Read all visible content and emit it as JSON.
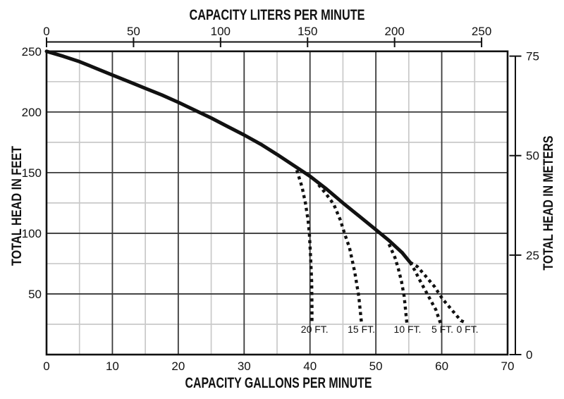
{
  "colors": {
    "background": "#ffffff",
    "ink": "#111111",
    "minor_grid": "#c9c9c9",
    "major_grid": "#3a3a3a"
  },
  "figure": {
    "top_axis": {
      "title": "CAPACITY LITERS PER MINUTE",
      "ticks": [
        0,
        50,
        100,
        150,
        200,
        250
      ],
      "liters_per_gallon": 3.785
    },
    "bottom_axis": {
      "title": "CAPACITY GALLONS PER MINUTE",
      "ticks": [
        0,
        10,
        20,
        30,
        40,
        50,
        60,
        70
      ],
      "max": 70
    },
    "left_axis": {
      "title": "TOTAL HEAD IN FEET",
      "ticks": [
        50,
        100,
        150,
        200,
        250
      ],
      "max": 250
    },
    "right_axis": {
      "title": "TOTAL HEAD IN METERS",
      "ticks": [
        0,
        25,
        50,
        75
      ],
      "feet_per_meter": 3.2808
    }
  },
  "chart_data": {
    "type": "line",
    "xlabel": "CAPACITY GALLONS PER MINUTE",
    "ylabel": "TOTAL HEAD IN FEET",
    "x2label": "CAPACITY LITERS PER MINUTE",
    "y2label": "TOTAL HEAD IN METERS",
    "xlim": [
      0,
      70
    ],
    "ylim": [
      0,
      250
    ],
    "x2lim_liters": [
      0,
      250
    ],
    "y2lim_meters": [
      0,
      75
    ],
    "grid": {
      "major_x": 10,
      "minor_x": 5,
      "major_y": 50,
      "minor_y": 25,
      "on": true
    },
    "legend_position": "none",
    "series": [
      {
        "name": "main-performance-curve",
        "style": "solid",
        "points": [
          [
            0,
            250
          ],
          [
            2.5,
            246
          ],
          [
            5,
            241.5
          ],
          [
            7.5,
            236
          ],
          [
            10,
            230.5
          ],
          [
            12.5,
            225
          ],
          [
            15,
            219.5
          ],
          [
            17.5,
            214
          ],
          [
            20,
            208
          ],
          [
            22.5,
            201.5
          ],
          [
            25,
            195
          ],
          [
            27.5,
            188
          ],
          [
            30,
            181
          ],
          [
            32.5,
            173.5
          ],
          [
            35,
            165
          ],
          [
            37.5,
            156
          ],
          [
            40,
            147
          ],
          [
            42.5,
            136.5
          ],
          [
            45,
            125
          ],
          [
            47.5,
            114
          ],
          [
            50,
            103
          ],
          [
            52,
            94
          ],
          [
            54,
            84
          ],
          [
            55.2,
            76
          ]
        ]
      },
      {
        "name": "suction-lift-20ft",
        "style": "dashed",
        "label": "20 FT.",
        "label_anchor": [
          40.7,
          21
        ],
        "points": [
          [
            38,
            152
          ],
          [
            38.8,
            138
          ],
          [
            39.3,
            125
          ],
          [
            39.7,
            111
          ],
          [
            39.9,
            100
          ],
          [
            40.1,
            80
          ],
          [
            40.25,
            60
          ],
          [
            40.3,
            40
          ],
          [
            40.3,
            26
          ]
        ]
      },
      {
        "name": "suction-lift-15ft",
        "style": "dashed",
        "label": "15 FT.",
        "label_anchor": [
          47.8,
          21
        ],
        "points": [
          [
            41.3,
            140
          ],
          [
            42.5,
            132
          ],
          [
            43.6,
            124
          ],
          [
            44.6,
            111
          ],
          [
            45.3,
            99
          ],
          [
            46,
            88
          ],
          [
            46.8,
            68
          ],
          [
            47.4,
            48
          ],
          [
            47.8,
            27
          ]
        ]
      },
      {
        "name": "suction-lift-10ft",
        "style": "dashed",
        "label": "10 FT.",
        "label_anchor": [
          54.8,
          21
        ],
        "points": [
          [
            52,
            91
          ],
          [
            52.9,
            80
          ],
          [
            53.4,
            71
          ],
          [
            53.9,
            60
          ],
          [
            54.3,
            48
          ],
          [
            54.5,
            37
          ],
          [
            54.7,
            26
          ]
        ]
      },
      {
        "name": "suction-lift-5ft",
        "style": "dashed",
        "label": "5 FT.",
        "label_anchor": [
          60.1,
          21
        ],
        "points": [
          [
            55.2,
            76
          ],
          [
            55.9,
            69.5
          ],
          [
            56.6,
            62
          ],
          [
            57.5,
            53
          ],
          [
            58.4,
            44
          ],
          [
            59.1,
            37
          ],
          [
            59.8,
            26
          ]
        ]
      },
      {
        "name": "suction-lift-0ft",
        "style": "dashed",
        "label": "0 FT.",
        "label_anchor": [
          63.9,
          21
        ],
        "points": [
          [
            55.2,
            76
          ],
          [
            56.3,
            72.5
          ],
          [
            57.5,
            65
          ],
          [
            58.9,
            56
          ],
          [
            60.1,
            46
          ],
          [
            61.5,
            37
          ],
          [
            62.9,
            28
          ],
          [
            63.8,
            26
          ]
        ]
      }
    ]
  }
}
